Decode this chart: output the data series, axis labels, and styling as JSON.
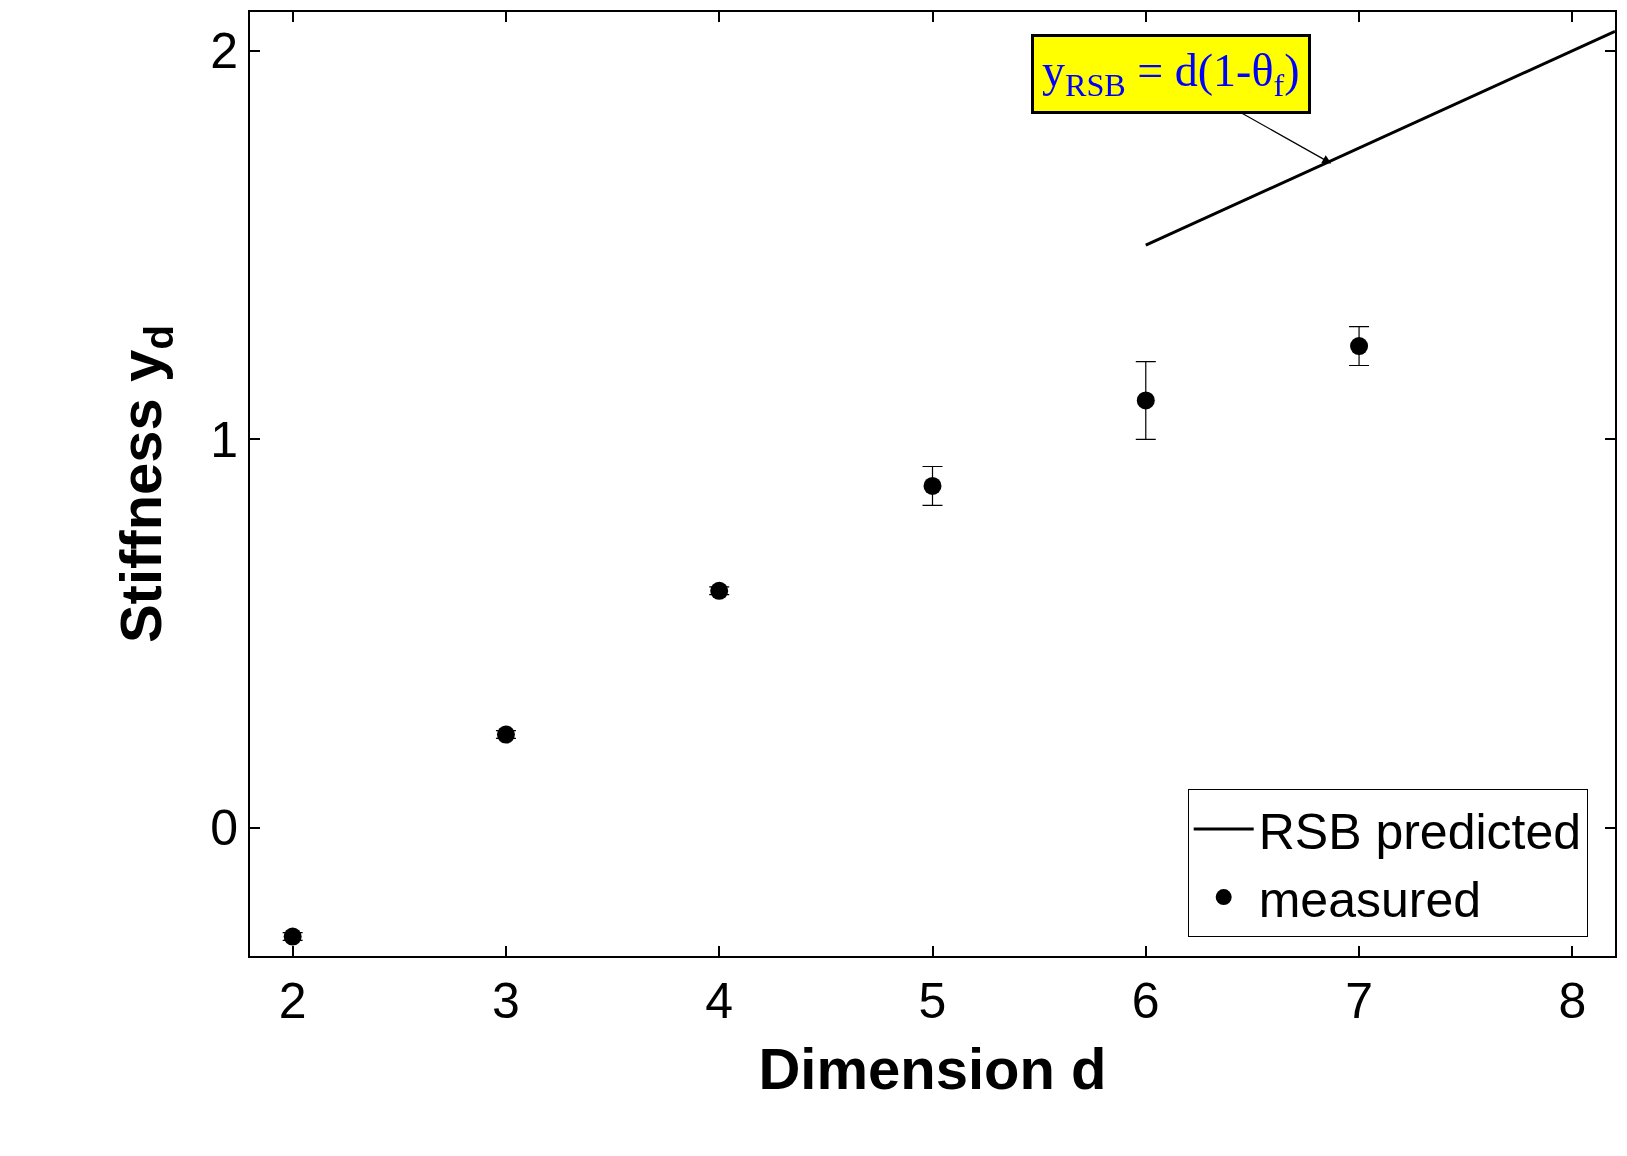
{
  "chart_data": {
    "type": "scatter",
    "xlabel": "Dimension d",
    "ylabel": "Stiffness y$_{d}$",
    "x": [
      2,
      3,
      4,
      5,
      6,
      7
    ],
    "series": [
      {
        "name": "RSB predicted",
        "type": "line",
        "color": "#000000",
        "x": [
          6,
          8.2
        ],
        "values": [
          1.5,
          2.05
        ],
        "marker": "none",
        "line_style": "solid"
      },
      {
        "name": "measured",
        "color": "#000000",
        "values": [
          -0.28,
          0.24,
          0.61,
          0.88,
          1.1,
          1.24
        ],
        "errors": [
          0.01,
          0.01,
          0.01,
          0.05,
          0.1,
          0.05
        ],
        "marker": "circle"
      }
    ],
    "annotations": [
      {
        "text": "y$_{RSB}$ = d(1-θ$_{f}$)",
        "x": 6.87,
        "y": 1.71
      }
    ],
    "xlim": [
      1.8,
      8.2
    ],
    "ylim": [
      -0.33,
      2.1
    ],
    "xticks": [
      2,
      3,
      4,
      5,
      6,
      7,
      8
    ],
    "yticks": [
      0,
      1,
      2
    ],
    "grid": false,
    "legend": "bottom right"
  }
}
